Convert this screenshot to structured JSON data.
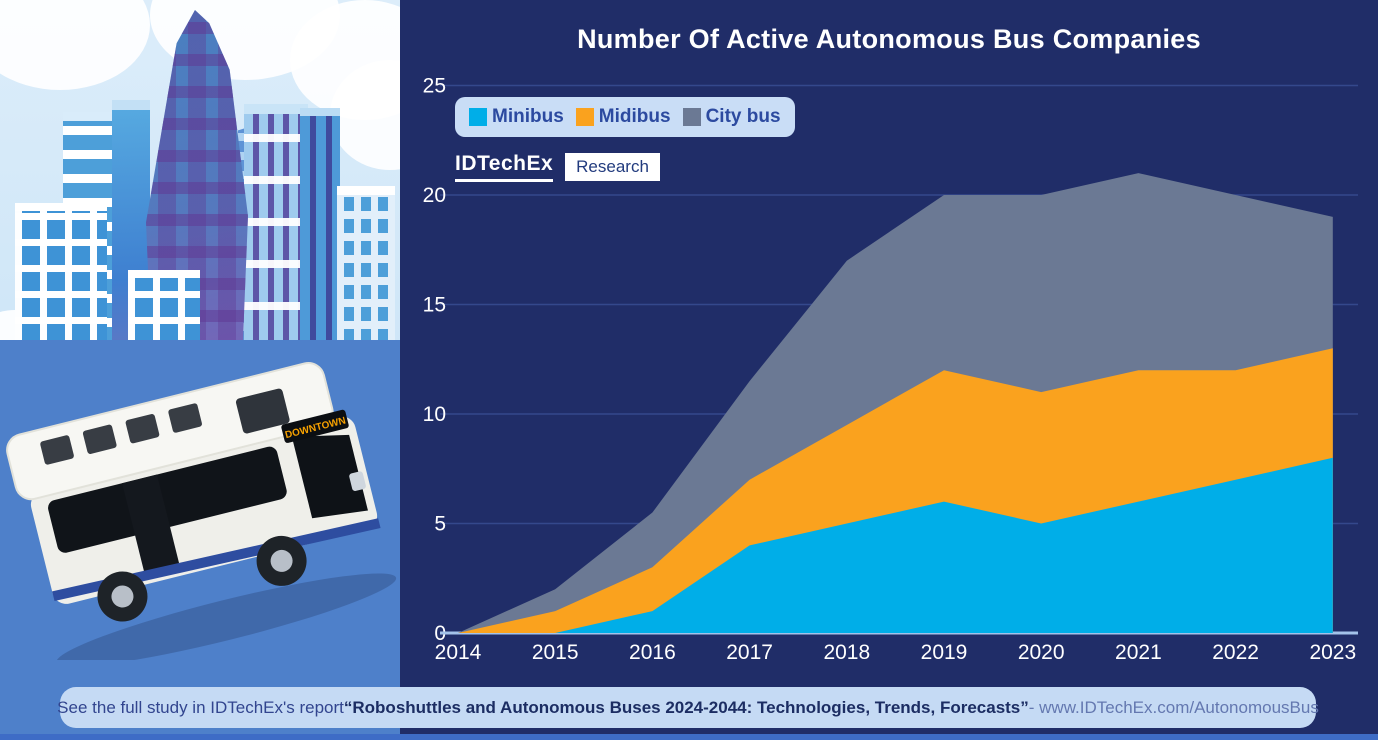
{
  "page": {
    "title": "Number Of Active Autonomous Bus Companies"
  },
  "logo": {
    "brand": "IDTechEx",
    "suffix": "Research"
  },
  "footer": {
    "prefix": "See the full study in IDTechEx's report ",
    "report": "“Roboshuttles and Autonomous Buses 2024-2044: Technologies, Trends, Forecasts”",
    "suffix": " - www.IDTechEx.com/AutonomousBus"
  },
  "illustration": {
    "bus_sign": "DOWNTOWN"
  },
  "chart_data": {
    "type": "area",
    "stacked": true,
    "title": "Number Of Active Autonomous Bus Companies",
    "categories": [
      2014,
      2015,
      2016,
      2017,
      2018,
      2019,
      2020,
      2021,
      2022,
      2023
    ],
    "series": [
      {
        "name": "Minibus",
        "color": "#00AEE8",
        "values": [
          0,
          0,
          1,
          4,
          5,
          6,
          5,
          6,
          7,
          8
        ]
      },
      {
        "name": "Midibus",
        "color": "#FAA21E",
        "values": [
          0,
          1,
          2,
          3,
          4.5,
          6,
          6,
          6,
          5,
          5
        ]
      },
      {
        "name": "City bus",
        "color": "#6B7994",
        "values": [
          0,
          1,
          2.5,
          4.5,
          7.5,
          8,
          9,
          9,
          8,
          6
        ]
      }
    ],
    "cumulative_totals": [
      0,
      2,
      5.5,
      11.5,
      17,
      20,
      20,
      21,
      20,
      19
    ],
    "y_ticks": [
      0,
      5,
      10,
      15,
      20,
      25
    ],
    "ylim": [
      0,
      25
    ],
    "grid": true,
    "legend_position": "top-left",
    "colors": {
      "background": "#202D68",
      "gridline": "#34488C",
      "axis_line": "#A3C2EA",
      "tick_text": "#FFFFFF",
      "legend_bg": "#C9DDF6",
      "legend_text": "#2C4AA0",
      "footer_bg": "#C5DAF4",
      "bottom_strip": "#3E6CC6"
    }
  }
}
